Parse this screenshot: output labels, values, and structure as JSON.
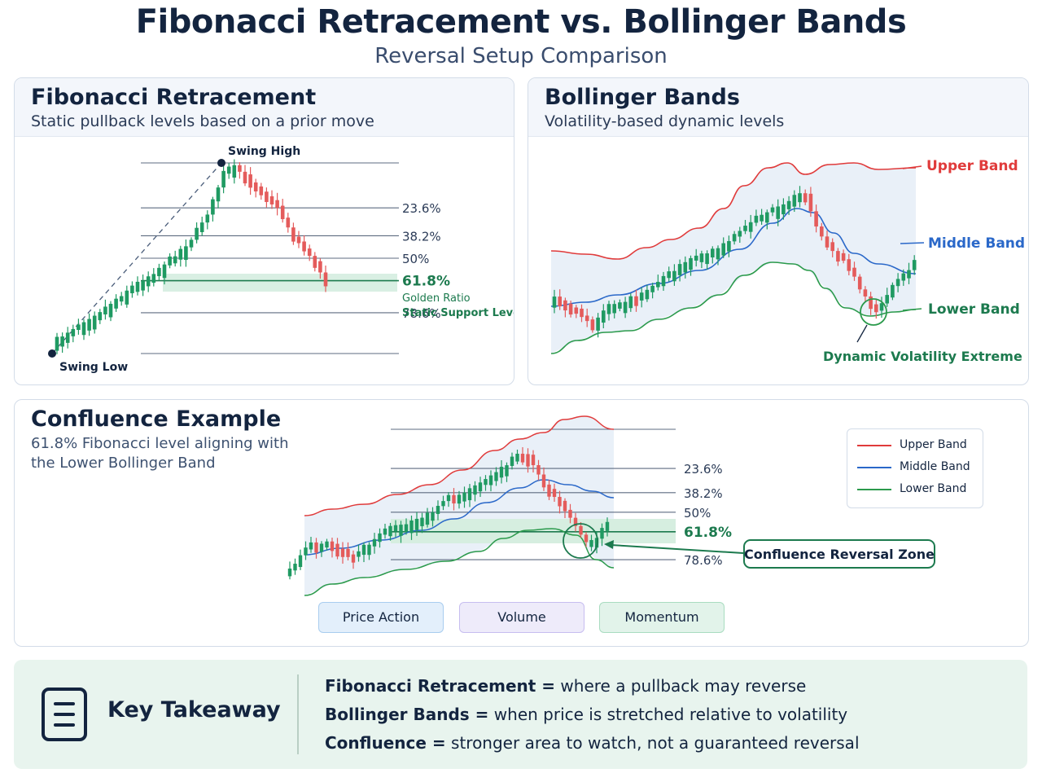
{
  "title": "Fibonacci Retracement vs. Bollinger Bands",
  "subtitle": "Reversal Setup Comparison",
  "colors": {
    "bullish": "#1f9a62",
    "bearish": "#e45b5b",
    "upper_band": "#e03b3b",
    "middle_band": "#2a68c9",
    "lower_band": "#2b9a4c",
    "fib_level": "#5d6b80",
    "golden": "#1c7a4e",
    "confluence_fill": "#d6eee0"
  },
  "fib_panel": {
    "title": "Fibonacci Retracement",
    "subtitle": "Static pullback levels based on a prior move",
    "swing_high_label": "Swing High",
    "swing_low_label": "Swing Low",
    "golden_ratio_label": "Golden Ratio",
    "support_label": "Static Support Level"
  },
  "boll_panel": {
    "title": "Bollinger Bands",
    "subtitle": "Volatility-based dynamic levels",
    "upper_label": "Upper Band",
    "middle_label": "Middle Band",
    "lower_label": "Lower Band",
    "extreme_label": "Dynamic Volatility Extreme"
  },
  "conf_panel": {
    "title": "Confluence Example",
    "description": "61.8% Fibonacci level aligning with the Lower Bollinger Band",
    "zone_label": "Confluence Reversal Zone",
    "legend": [
      {
        "label": "Upper Band",
        "color": "#e03b3b"
      },
      {
        "label": "Middle Band",
        "color": "#2a68c9"
      },
      {
        "label": "Lower Band",
        "color": "#2b9a4c"
      }
    ],
    "chips": {
      "price": "Price Action",
      "volume": "Volume",
      "momentum": "Momentum"
    }
  },
  "chart_data": [
    {
      "type": "candlestick",
      "title": "Fibonacci Retracement",
      "fib_levels": [
        {
          "ratio": 0,
          "label": ""
        },
        {
          "ratio": 0.236,
          "label": "23.6%"
        },
        {
          "ratio": 0.382,
          "label": "38.2%"
        },
        {
          "ratio": 0.5,
          "label": "50%"
        },
        {
          "ratio": 0.618,
          "label": "61.8%",
          "highlight": true
        },
        {
          "ratio": 0.786,
          "label": "78.6%"
        },
        {
          "ratio": 1,
          "label": ""
        }
      ],
      "annotations": [
        "Swing High",
        "Swing Low",
        "Golden Ratio",
        "Static Support Level"
      ]
    },
    {
      "type": "candlestick",
      "title": "Bollinger Bands",
      "series": [
        {
          "name": "Upper Band"
        },
        {
          "name": "Middle Band"
        },
        {
          "name": "Lower Band"
        }
      ],
      "annotations": [
        "Dynamic Volatility Extreme"
      ]
    },
    {
      "type": "candlestick",
      "title": "Confluence Example",
      "fib_levels": [
        {
          "ratio": 0,
          "label": ""
        },
        {
          "ratio": 0.236,
          "label": "23.6%"
        },
        {
          "ratio": 0.382,
          "label": "38.2%"
        },
        {
          "ratio": 0.5,
          "label": "50%"
        },
        {
          "ratio": 0.618,
          "label": "61.8%",
          "highlight": true
        },
        {
          "ratio": 0.786,
          "label": "78.6%"
        }
      ],
      "series": [
        {
          "name": "Upper Band"
        },
        {
          "name": "Middle Band"
        },
        {
          "name": "Lower Band"
        }
      ],
      "annotations": [
        "Confluence Reversal Zone"
      ]
    }
  ],
  "takeaway": {
    "title": "Key Takeaway",
    "lines": [
      {
        "term": "Fibonacci Retracement =",
        "text": " where a pullback may reverse"
      },
      {
        "term": "Bollinger Bands =",
        "text": " when price is stretched relative to volatility"
      },
      {
        "term": "Confluence =",
        "text": " stronger area to watch, not a guaranteed reversal"
      }
    ]
  }
}
